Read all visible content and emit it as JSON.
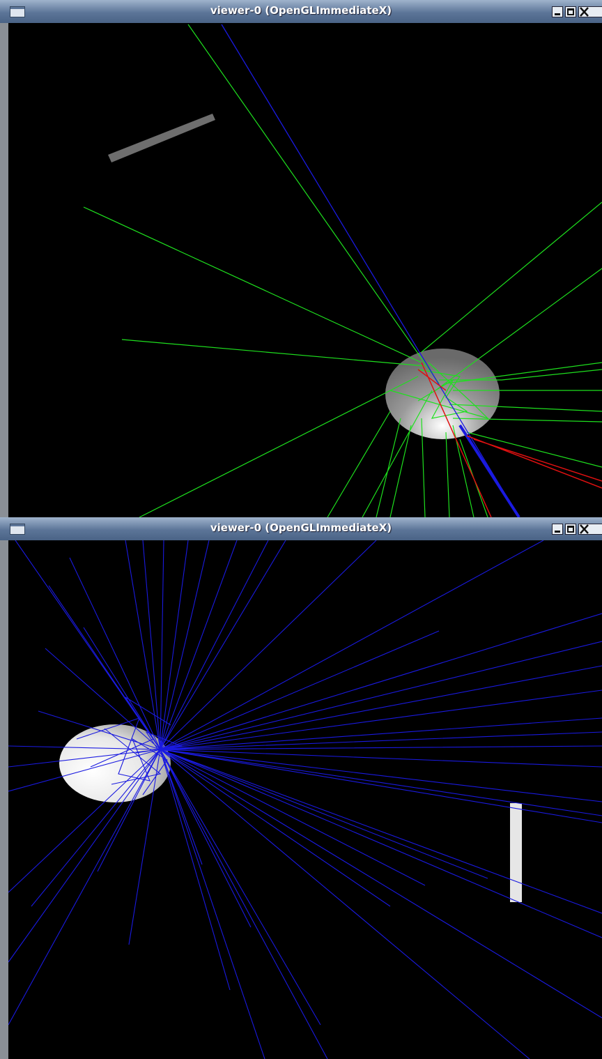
{
  "windows": [
    {
      "title": "viewer-0 (OpenGLImmediateX)"
    },
    {
      "title": "viewer-0 (OpenGLImmediateX)"
    }
  ]
}
